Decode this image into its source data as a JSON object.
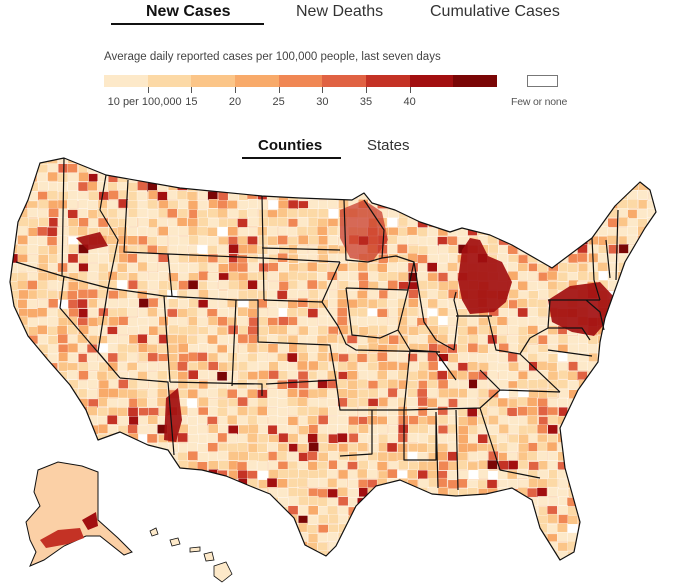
{
  "tabs": [
    {
      "label": "New Cases",
      "active": true
    },
    {
      "label": "New Deaths",
      "active": false
    },
    {
      "label": "Cumulative Cases",
      "active": false
    }
  ],
  "legend": {
    "caption": "Average daily reported cases per 100,000 people, last seven days",
    "colors": [
      "#fde9c9",
      "#fcd9a6",
      "#fbc588",
      "#f8aa6a",
      "#f08754",
      "#e06243",
      "#c43225",
      "#a20f10",
      "#7a0606"
    ],
    "tick_labels": [
      "10 per 100,000",
      "15",
      "20",
      "25",
      "30",
      "35",
      "40"
    ],
    "few_label": "Few or none",
    "few_color": "#ffffff"
  },
  "subtabs": [
    {
      "label": "Counties",
      "active": true
    },
    {
      "label": "States",
      "active": false
    }
  ],
  "map": {
    "state_border_color": "#111111",
    "background_color": "#fbd3ab"
  }
}
